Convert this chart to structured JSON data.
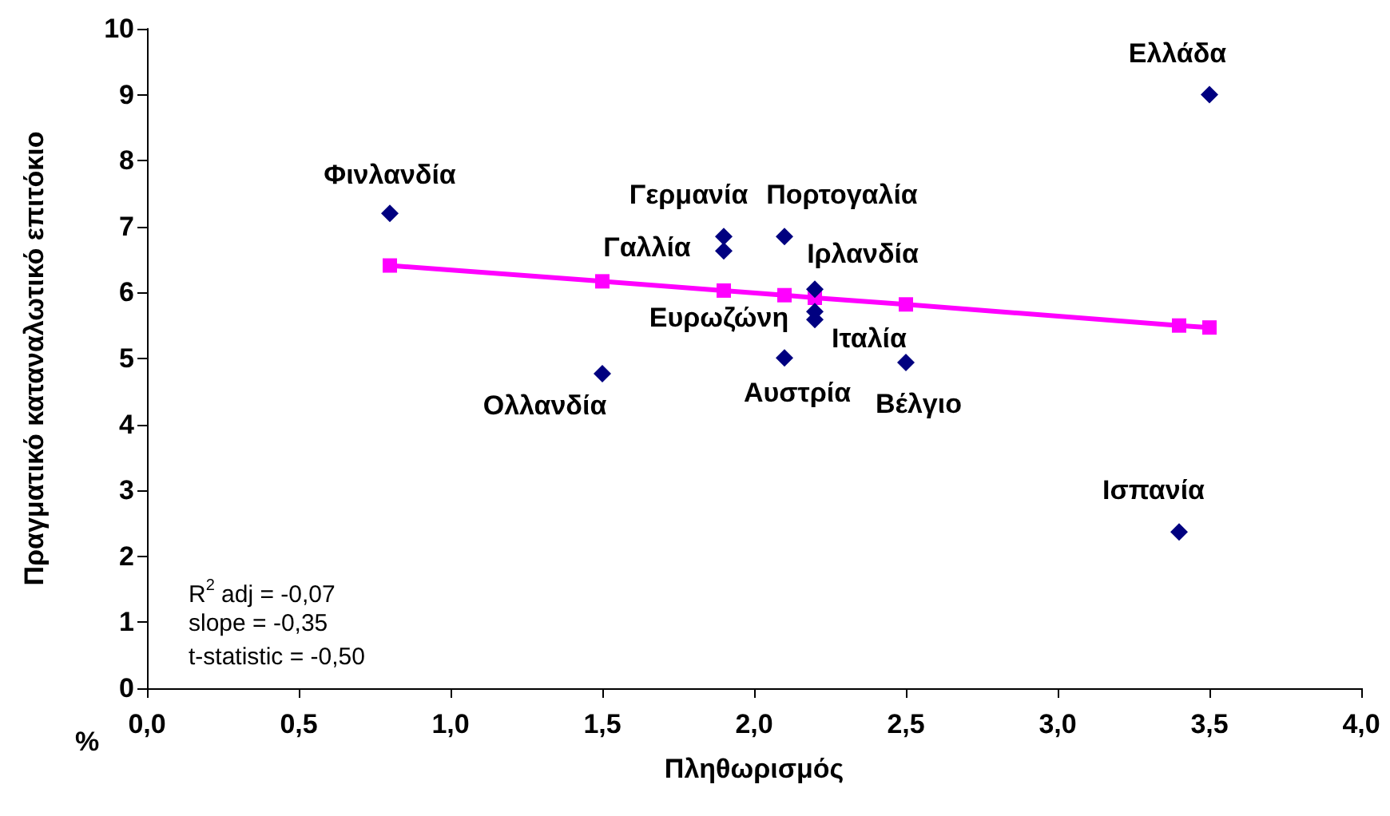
{
  "chart_data": {
    "type": "scatter",
    "xlabel": "Πληθωρισμός",
    "ylabel": "Πραγματικό καταναλωτικό επιτόκιο",
    "xlim": [
      0,
      4
    ],
    "xticks": [
      {
        "value": 0,
        "label": "0,0"
      },
      {
        "value": 0.5,
        "label": "0,5"
      },
      {
        "value": 1,
        "label": "1,0"
      },
      {
        "value": 1.5,
        "label": "1,5"
      },
      {
        "value": 2,
        "label": "2,0"
      },
      {
        "value": 2.5,
        "label": "2,5"
      },
      {
        "value": 3,
        "label": "3,0"
      },
      {
        "value": 3.5,
        "label": "3,5"
      },
      {
        "value": 4,
        "label": "4,0"
      }
    ],
    "ylim": [
      0,
      10
    ],
    "yticks": [
      0,
      1,
      2,
      3,
      4,
      5,
      6,
      7,
      8,
      9,
      10
    ],
    "grid": false,
    "series": [
      {
        "type": "scatter",
        "marker": "diamond",
        "color": "#000080",
        "x": [
          0.8,
          1.9,
          1.9,
          2.1,
          2.2,
          2.2,
          2.2,
          2.1,
          1.5,
          2.5,
          3.5,
          3.4
        ],
        "values": [
          7.2,
          6.85,
          6.63,
          6.85,
          6.05,
          5.71,
          5.59,
          5.01,
          4.77,
          4.94,
          9.0,
          2.37
        ]
      },
      {
        "type": "line",
        "marker": "square",
        "line_style": "solid",
        "color": "#ff00ff",
        "x": [
          0.8,
          1.5,
          1.9,
          2.1,
          2.2,
          2.5,
          3.4,
          3.5
        ],
        "values": [
          6.41,
          6.17,
          6.03,
          5.96,
          5.92,
          5.82,
          5.5,
          5.47
        ]
      }
    ],
    "annotations": [
      {
        "text": "Φινλανδία",
        "x": 0.8,
        "y": 7.2
      },
      {
        "text": "Γερμανία",
        "x": 1.9,
        "y": 6.85
      },
      {
        "text": "Γαλλία",
        "x": 1.9,
        "y": 6.63
      },
      {
        "text": "Πορτογαλία",
        "x": 2.1,
        "y": 6.85
      },
      {
        "text": "Ιρλανδία",
        "x": 2.2,
        "y": 6.05
      },
      {
        "text": "Ευρωζώνη",
        "x": 2.2,
        "y": 5.71
      },
      {
        "text": "Ιταλία",
        "x": 2.2,
        "y": 5.59
      },
      {
        "text": "Αυστρία",
        "x": 2.1,
        "y": 5.01
      },
      {
        "text": "Ολλανδία",
        "x": 1.5,
        "y": 4.77
      },
      {
        "text": "Βέλγιο",
        "x": 2.5,
        "y": 4.94
      },
      {
        "text": "Ελλάδα",
        "x": 3.5,
        "y": 9.0
      },
      {
        "text": "Ισπανία",
        "x": 3.4,
        "y": 2.37
      },
      "R$^{2}$ adj = -0,07",
      "slope = -0,35",
      "t-statistic = -0,50",
      "%"
    ]
  }
}
